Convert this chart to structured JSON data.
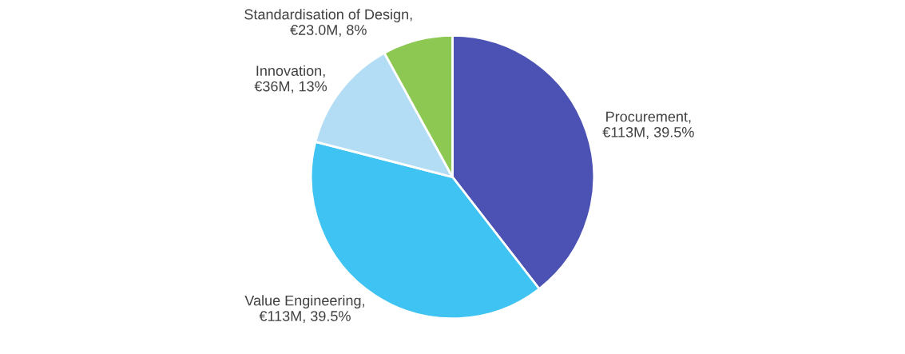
{
  "chart_data": {
    "type": "pie",
    "categories": [
      "Procurement, €113M, 39.5%",
      "Value Engineering, €113M, 39.5%",
      "Innovation, €36M, 13%",
      "Standardisation of Design, €23.0M, 8%"
    ],
    "values": [
      39.5,
      39.5,
      13,
      8
    ],
    "colors": [
      "#4b52b3",
      "#3ec3f2",
      "#b3ddf5",
      "#8dc853"
    ]
  }
}
